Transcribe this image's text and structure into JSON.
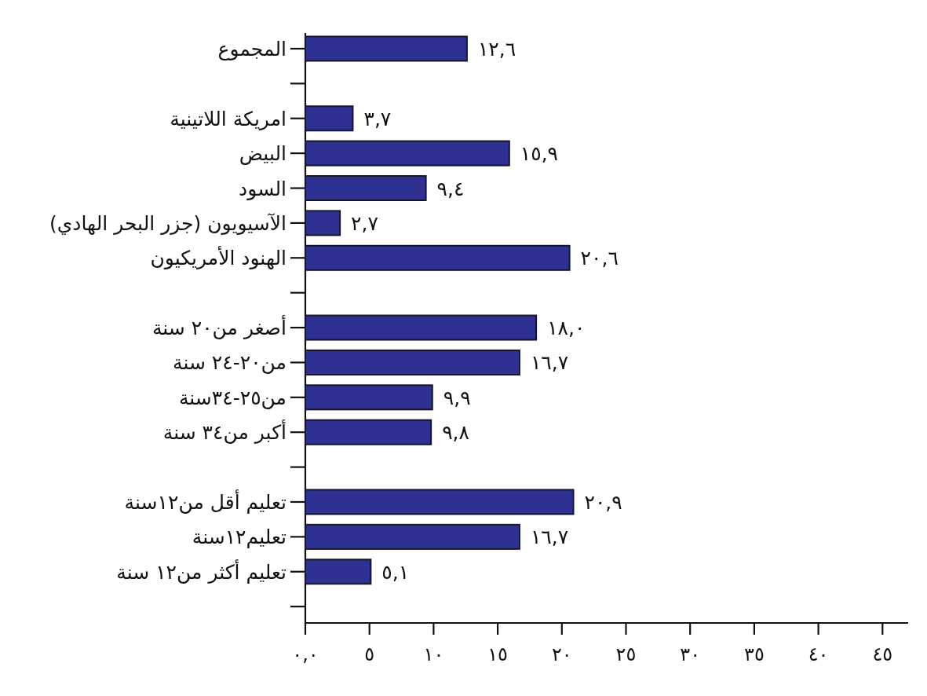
{
  "chart_data": {
    "type": "bar",
    "orientation": "horizontal",
    "categories": [
      "المجموع",
      null,
      "امريكة اللاتينية",
      "البيض",
      "السود",
      "الآسيويون (جزر البحر الهادي)",
      "الهنود الأمريكيون",
      null,
      "أصغر من٢٠ سنة",
      "من٢٠-٢٤ سنة",
      "من٢٥-٣٤سنة",
      "أكبر من٣٤ سنة",
      null,
      "تعليم أقل من١٢سنة",
      "تعليم١٢سنة",
      "تعليم أكثر من١٢ سنة",
      null
    ],
    "values": [
      12.6,
      null,
      3.7,
      15.9,
      9.4,
      2.7,
      20.6,
      null,
      18.0,
      16.7,
      9.9,
      9.8,
      null,
      20.9,
      16.7,
      5.1,
      null
    ],
    "value_labels": [
      "١٢,٦",
      null,
      "٣,٧",
      "١٥,٩",
      "٩,٤",
      "٢,٧",
      "٢٠,٦",
      null,
      "١٨,٠",
      "١٦,٧",
      "٩,٩",
      "٩,٨",
      null,
      "٢٠,٩",
      "١٦,٧",
      "٥,١",
      null
    ],
    "color": "#2e3192",
    "xlim": [
      0,
      47
    ],
    "xticks": [
      {
        "value": 0,
        "label": "٠,٠"
      },
      {
        "value": 5,
        "label": "٥"
      },
      {
        "value": 10,
        "label": "١٠"
      },
      {
        "value": 15,
        "label": "١٥"
      },
      {
        "value": 20,
        "label": "٢٠"
      },
      {
        "value": 25,
        "label": "٢٥"
      },
      {
        "value": 30,
        "label": "٣٠"
      },
      {
        "value": 35,
        "label": "٣٥"
      },
      {
        "value": 40,
        "label": "٤٠"
      },
      {
        "value": 45,
        "label": "٤٥"
      }
    ]
  }
}
